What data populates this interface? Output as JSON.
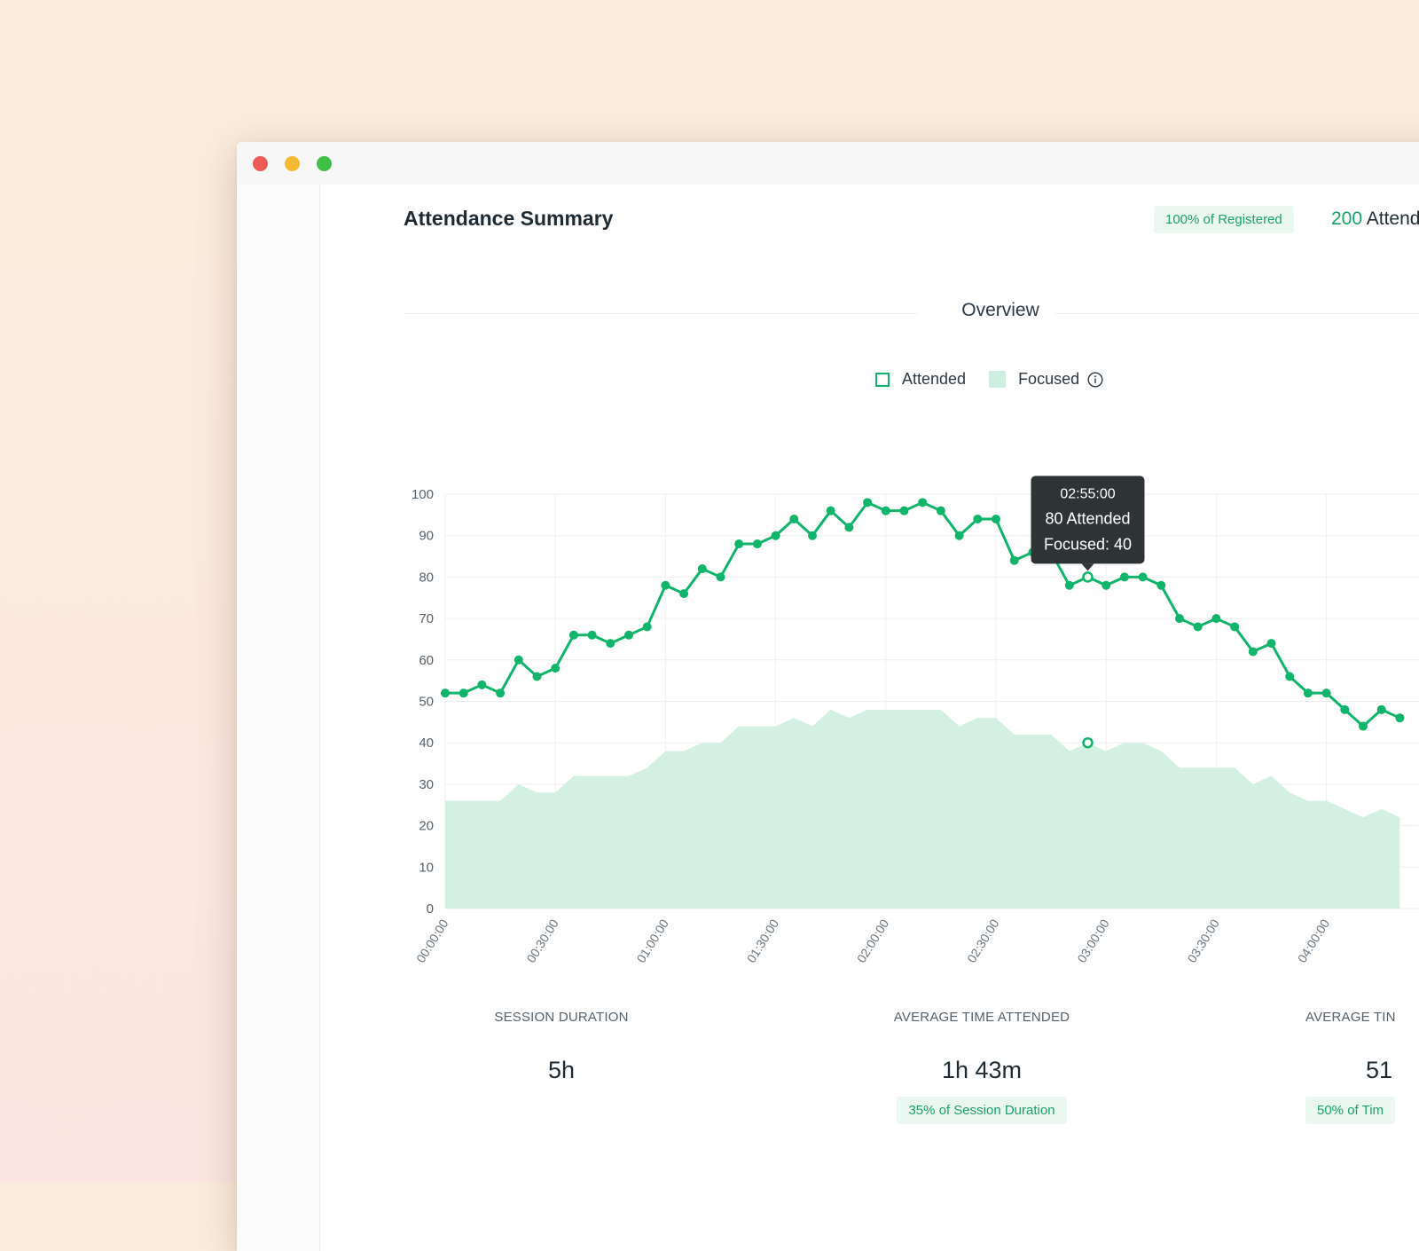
{
  "window": {
    "controls": [
      "close",
      "minimize",
      "maximize"
    ]
  },
  "header": {
    "title": "Attendance Summary",
    "registered_badge": "100% of Registered",
    "attended_number": "200",
    "attended_label": "Attend"
  },
  "section": {
    "title": "Overview"
  },
  "legend": {
    "attended": "Attended",
    "focused": "Focused",
    "info_icon": "info-icon"
  },
  "tooltip": {
    "time": "02:55:00",
    "attended": "80 Attended",
    "focused": "Focused: 40"
  },
  "colors": {
    "attended_line": "#10b56b",
    "focused_area": "#d3f0e3",
    "tooltip_bg": "#2e3436",
    "badge_bg": "#eaf8f1",
    "badge_text": "#1ea26b"
  },
  "chart_data": {
    "type": "line",
    "ylim": [
      0,
      100
    ],
    "y_ticks": [
      0,
      10,
      20,
      30,
      40,
      50,
      60,
      70,
      80,
      90,
      100
    ],
    "x_unit_minutes_per_point": 5,
    "x_tick_labels": [
      "00:00:00",
      "00:30:00",
      "01:00:00",
      "01:30:00",
      "02:00:00",
      "02:30:00",
      "03:00:00",
      "03:30:00",
      "04:00:00"
    ],
    "grid": true,
    "series": [
      {
        "name": "Attended",
        "style": "line-with-markers",
        "values": [
          52,
          52,
          54,
          52,
          60,
          56,
          58,
          66,
          66,
          64,
          66,
          68,
          78,
          76,
          82,
          80,
          88,
          88,
          90,
          94,
          90,
          96,
          92,
          98,
          96,
          96,
          98,
          96,
          90,
          94,
          94,
          84,
          86,
          86,
          78,
          80,
          78,
          80,
          80,
          78,
          70,
          68,
          70,
          68,
          62,
          64,
          56,
          52,
          52,
          48,
          44,
          48,
          46
        ]
      },
      {
        "name": "Focused",
        "style": "area",
        "values": [
          26,
          26,
          26,
          26,
          30,
          28,
          28,
          32,
          32,
          32,
          32,
          34,
          38,
          38,
          40,
          40,
          44,
          44,
          44,
          46,
          44,
          48,
          46,
          48,
          48,
          48,
          48,
          48,
          44,
          46,
          46,
          42,
          42,
          42,
          38,
          40,
          38,
          40,
          40,
          38,
          34,
          34,
          34,
          34,
          30,
          32,
          28,
          26,
          26,
          24,
          22,
          24,
          22
        ]
      }
    ],
    "highlight": {
      "x": "02:55:00",
      "attended": 80,
      "focused": 40
    }
  },
  "stats": [
    {
      "label": "SESSION DURATION",
      "value": "5h",
      "badge": ""
    },
    {
      "label": "AVERAGE TIME ATTENDED",
      "value": "1h 43m",
      "badge": "35% of Session Duration"
    },
    {
      "label": "AVERAGE TIN",
      "value": "51",
      "badge": "50% of Tim"
    }
  ]
}
